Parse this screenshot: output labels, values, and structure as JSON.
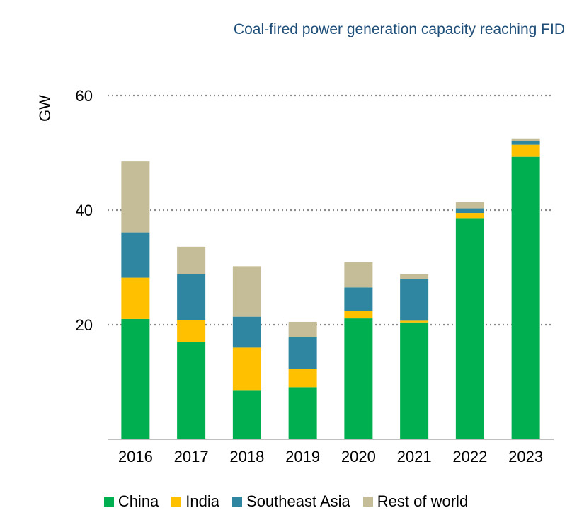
{
  "chart_data": {
    "type": "bar",
    "stacked": true,
    "title": "Coal-fired power generation capacity reaching FID",
    "xlabel": "",
    "ylabel": "GW",
    "ylim": [
      0,
      60
    ],
    "yticks": [
      20,
      40,
      60
    ],
    "grid": "dotted horizontal",
    "legend_position": "bottom",
    "categories": [
      "2016",
      "2017",
      "2018",
      "2019",
      "2020",
      "2021",
      "2022",
      "2023"
    ],
    "series": [
      {
        "name": "China",
        "color": "#00b050",
        "values": [
          21.0,
          17.0,
          8.6,
          9.1,
          21.1,
          20.4,
          38.6,
          49.3
        ]
      },
      {
        "name": "India",
        "color": "#ffc000",
        "values": [
          7.2,
          3.8,
          7.4,
          3.2,
          1.3,
          0.3,
          0.9,
          2.1
        ]
      },
      {
        "name": "Southeast Asia",
        "color": "#2e86a0",
        "values": [
          7.9,
          8.0,
          5.4,
          5.5,
          4.1,
          7.3,
          0.8,
          0.7
        ]
      },
      {
        "name": "Rest of world",
        "color": "#c4bd97",
        "values": [
          12.4,
          4.8,
          8.8,
          2.7,
          4.4,
          0.8,
          1.1,
          0.4
        ]
      }
    ]
  }
}
